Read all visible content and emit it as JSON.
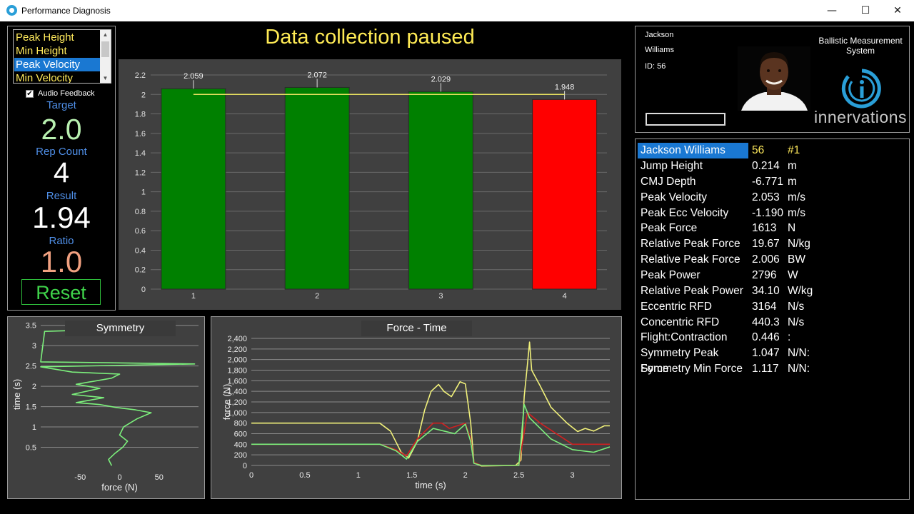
{
  "window": {
    "title": "Performance Diagnosis",
    "minimize": "—",
    "maximize": "☐",
    "close": "✕"
  },
  "metric_list": {
    "items": [
      "Peak Height",
      "Min Height",
      "Peak Velocity",
      "Min Velocity"
    ],
    "selected": "Peak Velocity"
  },
  "audio_feedback": {
    "label": "Audio Feedback",
    "checked": true
  },
  "stats": {
    "target_label": "Target",
    "target": "2.0",
    "rep_count_label": "Rep Count",
    "rep_count": "4",
    "result_label": "Result",
    "result": "1.94",
    "ratio_label": "Ratio",
    "ratio": "1.0"
  },
  "reset_label": "Reset",
  "status": "Data collection paused",
  "athlete": {
    "first": "Jackson",
    "last": "Williams",
    "id": "ID: 56"
  },
  "brand": {
    "system_name": "Ballistic Measurement System",
    "logo_text": "innervations"
  },
  "results_table": {
    "header": {
      "name": "Jackson Williams",
      "id": "56",
      "rank": "#1"
    },
    "rows": [
      {
        "label": "Jump Height",
        "value": "0.214",
        "unit": "m"
      },
      {
        "label": "CMJ Depth",
        "value": "-6.771",
        "unit": "m"
      },
      {
        "label": "Peak Velocity",
        "value": "2.053",
        "unit": "m/s"
      },
      {
        "label": "Peak Ecc Velocity",
        "value": "-1.190",
        "unit": "m/s"
      },
      {
        "label": "Peak Force",
        "value": "1613",
        "unit": "N"
      },
      {
        "label": "Relative Peak Force",
        "value": "19.67",
        "unit": "N/kg"
      },
      {
        "label": "Relative Peak Force",
        "value": "2.006",
        "unit": "BW"
      },
      {
        "label": "Peak Power",
        "value": "2796",
        "unit": "W"
      },
      {
        "label": "Relative Peak Power",
        "value": "34.10",
        "unit": "W/kg"
      },
      {
        "label": "Eccentric RFD",
        "value": "3164",
        "unit": "N/s"
      },
      {
        "label": "Concentric RFD",
        "value": "440.3",
        "unit": "N/s"
      },
      {
        "label": "Flight:Contraction",
        "value": "0.446",
        "unit": ":"
      },
      {
        "label": "Symmetry Peak Force",
        "value": "1.047",
        "unit": "N/N:"
      },
      {
        "label": "Symmetry Min Force",
        "value": "1.117",
        "unit": "N/N:"
      }
    ]
  },
  "colors": {
    "accent_blue": "#1a78d2",
    "bar_green": "#008000",
    "bar_red": "#ff0000",
    "target_line": "#e8e060",
    "label_yellow": "#ffea5c",
    "trace_yellow": "#f0f07a",
    "trace_green": "#7cf07c",
    "trace_red": "#d02020"
  },
  "chart_data": [
    {
      "type": "bar",
      "categories": [
        "1",
        "2",
        "3",
        "4"
      ],
      "values": [
        2.059,
        2.072,
        2.029,
        1.948
      ],
      "data_labels": [
        "2.059",
        "2.072",
        "2.029",
        "1.948"
      ],
      "bar_colors": [
        "#008000",
        "#008000",
        "#008000",
        "#ff0000"
      ],
      "target": 2.0,
      "yticks": [
        "0",
        "0.2",
        "0.4",
        "0.6",
        "0.8",
        "1",
        "1.2",
        "1.4",
        "1.6",
        "1.8",
        "2",
        "2.2"
      ],
      "ylim": [
        0,
        2.2
      ],
      "grid": true
    },
    {
      "type": "line",
      "title": "Symmetry",
      "xlabel": "force (N)",
      "ylabel": "time (s)",
      "xticks": [
        "-50",
        "0",
        "50"
      ],
      "yticks": [
        "0.5",
        "1",
        "1.5",
        "2",
        "2.5",
        "3",
        "3.5"
      ],
      "xlim": [
        -100,
        100
      ],
      "ylim": [
        0,
        3.6
      ],
      "series": [
        {
          "color": "#7cf07c",
          "points": [
            [
              -10,
              0.05
            ],
            [
              -14,
              0.2
            ],
            [
              -6,
              0.35
            ],
            [
              4,
              0.5
            ],
            [
              10,
              0.65
            ],
            [
              0,
              0.8
            ],
            [
              5,
              1.0
            ],
            [
              22,
              1.2
            ],
            [
              40,
              1.35
            ],
            [
              20,
              1.42
            ],
            [
              -5,
              1.48
            ],
            [
              -25,
              1.55
            ],
            [
              -55,
              1.6
            ],
            [
              -20,
              1.72
            ],
            [
              -60,
              1.8
            ],
            [
              -25,
              1.95
            ],
            [
              -55,
              2.05
            ],
            [
              -10,
              2.2
            ],
            [
              0,
              2.3
            ],
            [
              -60,
              2.35
            ],
            [
              -100,
              2.48
            ],
            [
              95,
              2.55
            ],
            [
              -100,
              2.6
            ],
            [
              -95,
              3.35
            ],
            [
              -62,
              3.37
            ]
          ]
        }
      ]
    },
    {
      "type": "line",
      "title": "Force - Time",
      "xlabel": "time (s)",
      "ylabel": "force (N)",
      "xticks": [
        "0",
        "0.5",
        "1",
        "1.5",
        "2",
        "2.5",
        "3"
      ],
      "yticks": [
        "0",
        "200",
        "400",
        "600",
        "800",
        "1,000",
        "1,200",
        "1,400",
        "1,600",
        "1,800",
        "2,000",
        "2,200",
        "2,400"
      ],
      "xlim": [
        0,
        3.35
      ],
      "ylim": [
        0,
        2400
      ],
      "series": [
        {
          "color": "#f0f07a",
          "points": [
            [
              0,
              800
            ],
            [
              1.2,
              800
            ],
            [
              1.3,
              650
            ],
            [
              1.4,
              250
            ],
            [
              1.47,
              140
            ],
            [
              1.55,
              450
            ],
            [
              1.62,
              1050
            ],
            [
              1.68,
              1400
            ],
            [
              1.75,
              1530
            ],
            [
              1.8,
              1400
            ],
            [
              1.87,
              1300
            ],
            [
              1.95,
              1580
            ],
            [
              2.0,
              1540
            ],
            [
              2.05,
              800
            ],
            [
              2.08,
              50
            ],
            [
              2.15,
              -10
            ],
            [
              2.47,
              0
            ],
            [
              2.52,
              100
            ],
            [
              2.55,
              1300
            ],
            [
              2.58,
              1900
            ],
            [
              2.6,
              2330
            ],
            [
              2.62,
              1800
            ],
            [
              2.7,
              1500
            ],
            [
              2.8,
              1100
            ],
            [
              2.95,
              800
            ],
            [
              3.05,
              640
            ],
            [
              3.12,
              700
            ],
            [
              3.2,
              650
            ],
            [
              3.3,
              750
            ],
            [
              3.35,
              750
            ]
          ]
        },
        {
          "color": "#d02020",
          "points": [
            [
              0,
              400
            ],
            [
              1.2,
              400
            ],
            [
              1.35,
              300
            ],
            [
              1.45,
              180
            ],
            [
              1.55,
              500
            ],
            [
              1.7,
              800
            ],
            [
              1.78,
              800
            ],
            [
              1.85,
              700
            ],
            [
              2.0,
              800
            ],
            [
              2.05,
              500
            ],
            [
              2.08,
              60
            ],
            [
              2.15,
              0
            ],
            [
              2.5,
              0
            ],
            [
              2.58,
              1000
            ],
            [
              2.7,
              800
            ],
            [
              3.0,
              400
            ],
            [
              3.35,
              400
            ]
          ]
        },
        {
          "color": "#7cf07c",
          "points": [
            [
              0,
              400
            ],
            [
              1.2,
              400
            ],
            [
              1.35,
              280
            ],
            [
              1.45,
              120
            ],
            [
              1.55,
              450
            ],
            [
              1.7,
              700
            ],
            [
              1.8,
              650
            ],
            [
              1.9,
              600
            ],
            [
              2.0,
              780
            ],
            [
              2.05,
              450
            ],
            [
              2.08,
              40
            ],
            [
              2.15,
              0
            ],
            [
              2.5,
              0
            ],
            [
              2.55,
              1150
            ],
            [
              2.6,
              900
            ],
            [
              2.8,
              500
            ],
            [
              3.0,
              300
            ],
            [
              3.2,
              250
            ],
            [
              3.35,
              350
            ]
          ]
        }
      ]
    }
  ]
}
